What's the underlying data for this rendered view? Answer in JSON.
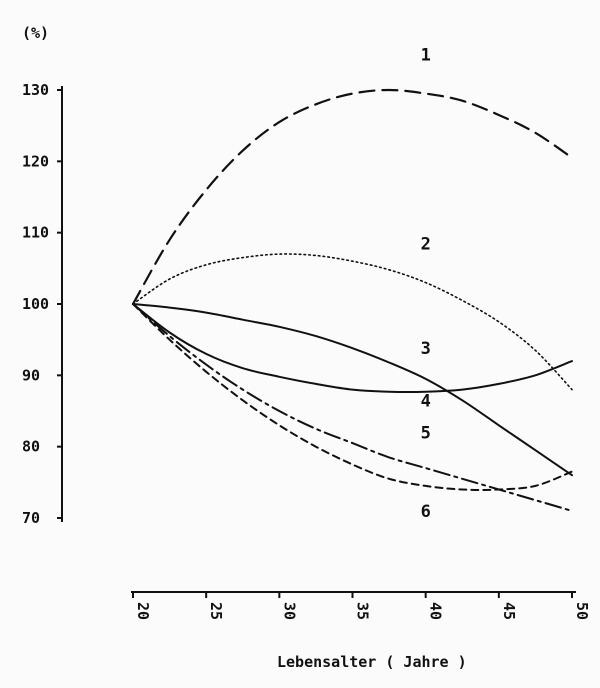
{
  "chart_data": {
    "type": "line",
    "title": "",
    "ylabel": "(%)",
    "xlabel": "Lebensalter ( Jahre )",
    "xlim": [
      20,
      50
    ],
    "ylim": [
      70,
      130
    ],
    "x_ticks": [
      "20",
      "25",
      "30",
      "35",
      "40",
      "45",
      "50"
    ],
    "y_ticks": [
      "70",
      "80",
      "90",
      "100",
      "110",
      "120",
      "130"
    ],
    "grid": false,
    "legend": "none",
    "x": [
      20,
      22.5,
      25,
      27.5,
      30,
      32.5,
      35,
      37.5,
      40,
      42.5,
      45,
      47.5,
      50
    ],
    "series": [
      {
        "name": "1",
        "style": "long-dash",
        "values": [
          100,
          109,
          116,
          121.5,
          125.5,
          128,
          129.5,
          130,
          129.5,
          128.5,
          126.5,
          124,
          120.5
        ]
      },
      {
        "name": "2",
        "style": "dotted",
        "values": [
          100,
          103.5,
          105.5,
          106.5,
          107,
          106.8,
          106,
          104.8,
          103,
          100.5,
          97.5,
          93.5,
          88
        ]
      },
      {
        "name": "3",
        "style": "solid",
        "values": [
          100,
          99.5,
          98.8,
          97.8,
          96.8,
          95.5,
          93.8,
          91.8,
          89.5,
          86.5,
          83,
          79.5,
          76
        ]
      },
      {
        "name": "4",
        "style": "solid",
        "values": [
          100,
          96,
          93,
          91,
          89.8,
          88.8,
          88,
          87.7,
          87.7,
          88,
          88.8,
          90,
          92
        ]
      },
      {
        "name": "5",
        "style": "dash-dot",
        "values": [
          100,
          95.5,
          91.5,
          88,
          85,
          82.5,
          80.5,
          78.5,
          77,
          75.5,
          74,
          72.5,
          71
        ]
      },
      {
        "name": "6",
        "style": "short-dash",
        "values": [
          100,
          95,
          90.5,
          86.5,
          83,
          80,
          77.5,
          75.5,
          74.5,
          74,
          74,
          74.5,
          76.5
        ]
      }
    ],
    "curve_labels": [
      {
        "text": "1",
        "x": 40,
        "y": 135
      },
      {
        "text": "2",
        "x": 40,
        "y": 108.5
      },
      {
        "text": "3",
        "x": 40,
        "y": 93.8
      },
      {
        "text": "4",
        "x": 40,
        "y": 86.5
      },
      {
        "text": "5",
        "x": 40,
        "y": 82
      },
      {
        "text": "6",
        "x": 40,
        "y": 71
      }
    ],
    "colors": {
      "ink": "#111111",
      "background": "#fbfbfb"
    }
  }
}
